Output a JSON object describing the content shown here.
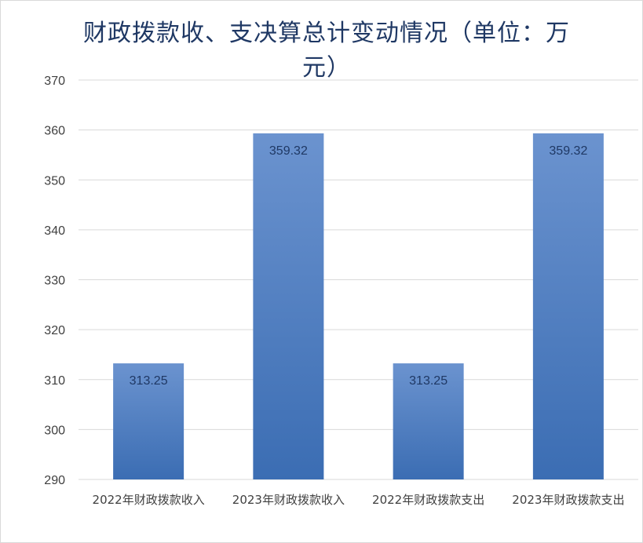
{
  "chart_data": {
    "type": "bar",
    "title": "财政拨款收、支决算总计变动情况（单位：万元）",
    "categories": [
      "2022年财政拨款收入",
      "2023年财政拨款收入",
      "2022年财政拨款支出",
      "2023年财政拨款支出"
    ],
    "values": [
      313.25,
      359.32,
      313.25,
      359.32
    ],
    "value_labels": [
      "313.25",
      "359.32",
      "313.25",
      "359.32"
    ],
    "ylim": [
      290,
      370
    ],
    "yticks": [
      290,
      300,
      310,
      320,
      330,
      340,
      350,
      360,
      370
    ],
    "grid": true,
    "legend": "none",
    "colors": {
      "bar_top": "#6b93cf",
      "bar_bottom": "#3b6db3",
      "title": "#1f3864",
      "grid": "#d9d9d9"
    }
  }
}
